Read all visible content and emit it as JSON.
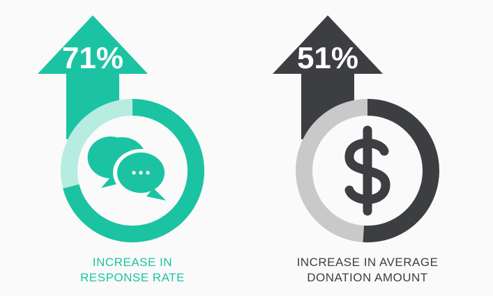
{
  "stats": [
    {
      "value": 71,
      "value_label": "71%",
      "label_lines": [
        "INCREASE IN",
        "RESPONSE RATE"
      ],
      "color": "#1cc3a2",
      "track_color": "#b7ece1",
      "text_color": "#1cc3a2",
      "icon": "chat"
    },
    {
      "value": 51,
      "value_label": "51%",
      "label_lines": [
        "INCREASE IN AVERAGE",
        "DONATION AMOUNT"
      ],
      "color": "#3d3e42",
      "track_color": "#c9c9c9",
      "text_color": "#3d3e42",
      "icon": "dollar"
    }
  ]
}
